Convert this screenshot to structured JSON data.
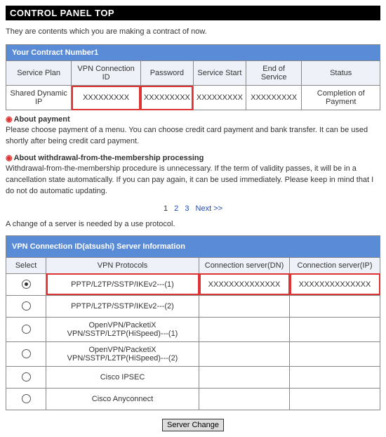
{
  "header": {
    "title": "CONTROL PANEL TOP"
  },
  "intro": "They are contents which you are making a contract of now.",
  "contract": {
    "section_title": "Your Contract Number1",
    "columns": [
      "Service Plan",
      "VPN Connection ID",
      "Password",
      "Service Start",
      "End of Service",
      "Status"
    ],
    "row": {
      "plan": "Shared Dynamic IP",
      "conn_id": "XXXXXXXXX",
      "password": "XXXXXXXXX",
      "start": "XXXXXXXXX",
      "end": "XXXXXXXXX",
      "status": "Completion of Payment"
    }
  },
  "about_payment": {
    "heading": "About payment",
    "body": "Please choose payment of a menu. You can choose credit card payment and bank transfer. It can be used shortly after being credit card payment."
  },
  "about_withdrawal": {
    "heading": "About withdrawal-from-the-membership processing",
    "body": "Withdrawal-from-the-membership procedure is unnecessary. If the term of validity passes, it will be in a cancellation state automatically. If you can pay again, it can be used immediately. Please keep in mind that I do not do automatic updating."
  },
  "pager": {
    "p1": "1",
    "p2": "2",
    "p3": "3",
    "next": "Next >>"
  },
  "change_note": "A change of a server is needed by a use protocol.",
  "server": {
    "section_title": "VPN Connection ID(atsushi) Server Information",
    "columns": [
      "Select",
      "VPN Protocols",
      "Connection server(DN)",
      "Connection server(IP)"
    ],
    "rows": [
      {
        "selected": true,
        "protocol": "PPTP/L2TP/SSTP/IKEv2---(1)",
        "dn": "XXXXXXXXXXXXXX",
        "ip": "XXXXXXXXXXXXXX"
      },
      {
        "selected": false,
        "protocol": "PPTP/L2TP/SSTP/IKEv2---(2)",
        "dn": "",
        "ip": ""
      },
      {
        "selected": false,
        "protocol": "OpenVPN/PacketiX VPN/SSTP/L2TP(HiSpeed)---(1)",
        "dn": "",
        "ip": ""
      },
      {
        "selected": false,
        "protocol": "OpenVPN/PacketiX VPN/SSTP/L2TP(HiSpeed)---(2)",
        "dn": "",
        "ip": ""
      },
      {
        "selected": false,
        "protocol": "Cisco IPSEC",
        "dn": "",
        "ip": ""
      },
      {
        "selected": false,
        "protocol": "Cisco Anyconnect",
        "dn": "",
        "ip": ""
      }
    ]
  },
  "button": {
    "label": "Server Change"
  },
  "colors": {
    "header_bg": "#5a8bd6",
    "highlight": "#d33"
  }
}
